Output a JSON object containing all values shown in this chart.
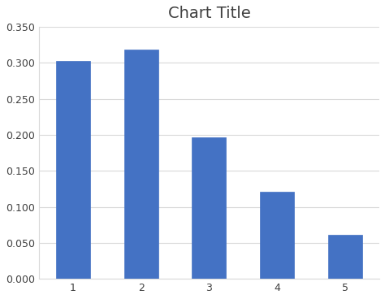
{
  "title": "Chart Title",
  "categories": [
    1,
    2,
    3,
    4,
    5
  ],
  "values": [
    0.303,
    0.318,
    0.197,
    0.121,
    0.061
  ],
  "bar_color": "#4472C4",
  "bar_edge_color": "#4472C4",
  "ylim": [
    0,
    0.35
  ],
  "yticks": [
    0.0,
    0.05,
    0.1,
    0.15,
    0.2,
    0.25,
    0.3,
    0.35
  ],
  "ytick_labels": [
    "0.000",
    "0.050",
    "0.100",
    "0.150",
    "0.200",
    "0.250",
    "0.300",
    "0.350"
  ],
  "xticks": [
    1,
    2,
    3,
    4,
    5
  ],
  "title_fontsize": 14,
  "tick_fontsize": 9,
  "bar_width": 0.5,
  "background_color": "#FFFFFF",
  "chart_bg_color": "#FFFFFF",
  "grid_color": "#D9D9D9",
  "border_color": "#D9D9D9"
}
